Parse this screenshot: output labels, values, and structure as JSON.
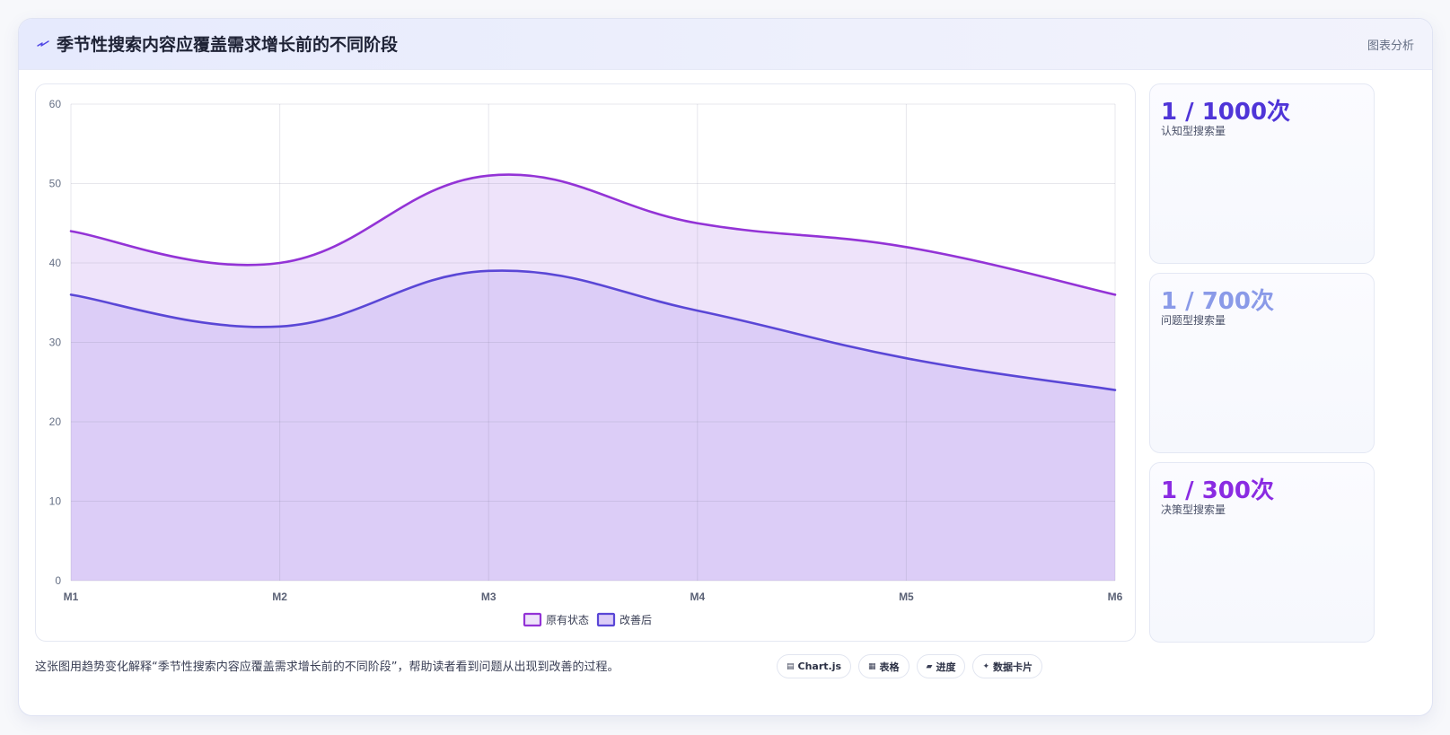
{
  "header": {
    "title": "季节性搜索内容应覆盖需求增长前的不同阶段",
    "right_label": "图表分析"
  },
  "chart_data": {
    "type": "area",
    "title": "",
    "xlabel": "",
    "ylabel": "",
    "categories": [
      "M1",
      "M2",
      "M3",
      "M4",
      "M5",
      "M6"
    ],
    "ylim": [
      0,
      60
    ],
    "yticks": [
      0,
      10,
      20,
      30,
      40,
      50,
      60
    ],
    "grid": true,
    "legend_position": "bottom",
    "series": [
      {
        "name": "原有状态",
        "values": [
          44,
          40,
          51,
          45,
          42,
          36
        ],
        "color": "#9333d6",
        "fill": "#eee3fa"
      },
      {
        "name": "改善后",
        "values": [
          36,
          32,
          39,
          34,
          28,
          24
        ],
        "color": "#5a47d6",
        "fill": "#dccdf7"
      }
    ]
  },
  "stats": [
    {
      "value": "1 / 1000次",
      "label": "认知型搜索量",
      "color": "#4f35d8"
    },
    {
      "value": "1 / 700次",
      "label": "问题型搜索量",
      "color": "#8a9ae8"
    },
    {
      "value": "1 / 300次",
      "label": "决策型搜索量",
      "color": "#8a2be2"
    }
  ],
  "footer": {
    "caption": "这张图用趋势变化解释“季节性搜索内容应覆盖需求增长前的不同阶段”，帮助读者看到问题从出现到改善的过程。",
    "pills": [
      {
        "icon": "▤",
        "label": "Chart.js"
      },
      {
        "icon": "▦",
        "label": "表格"
      },
      {
        "icon": "▰",
        "label": "进度"
      },
      {
        "icon": "✦",
        "label": "数据卡片"
      }
    ]
  }
}
